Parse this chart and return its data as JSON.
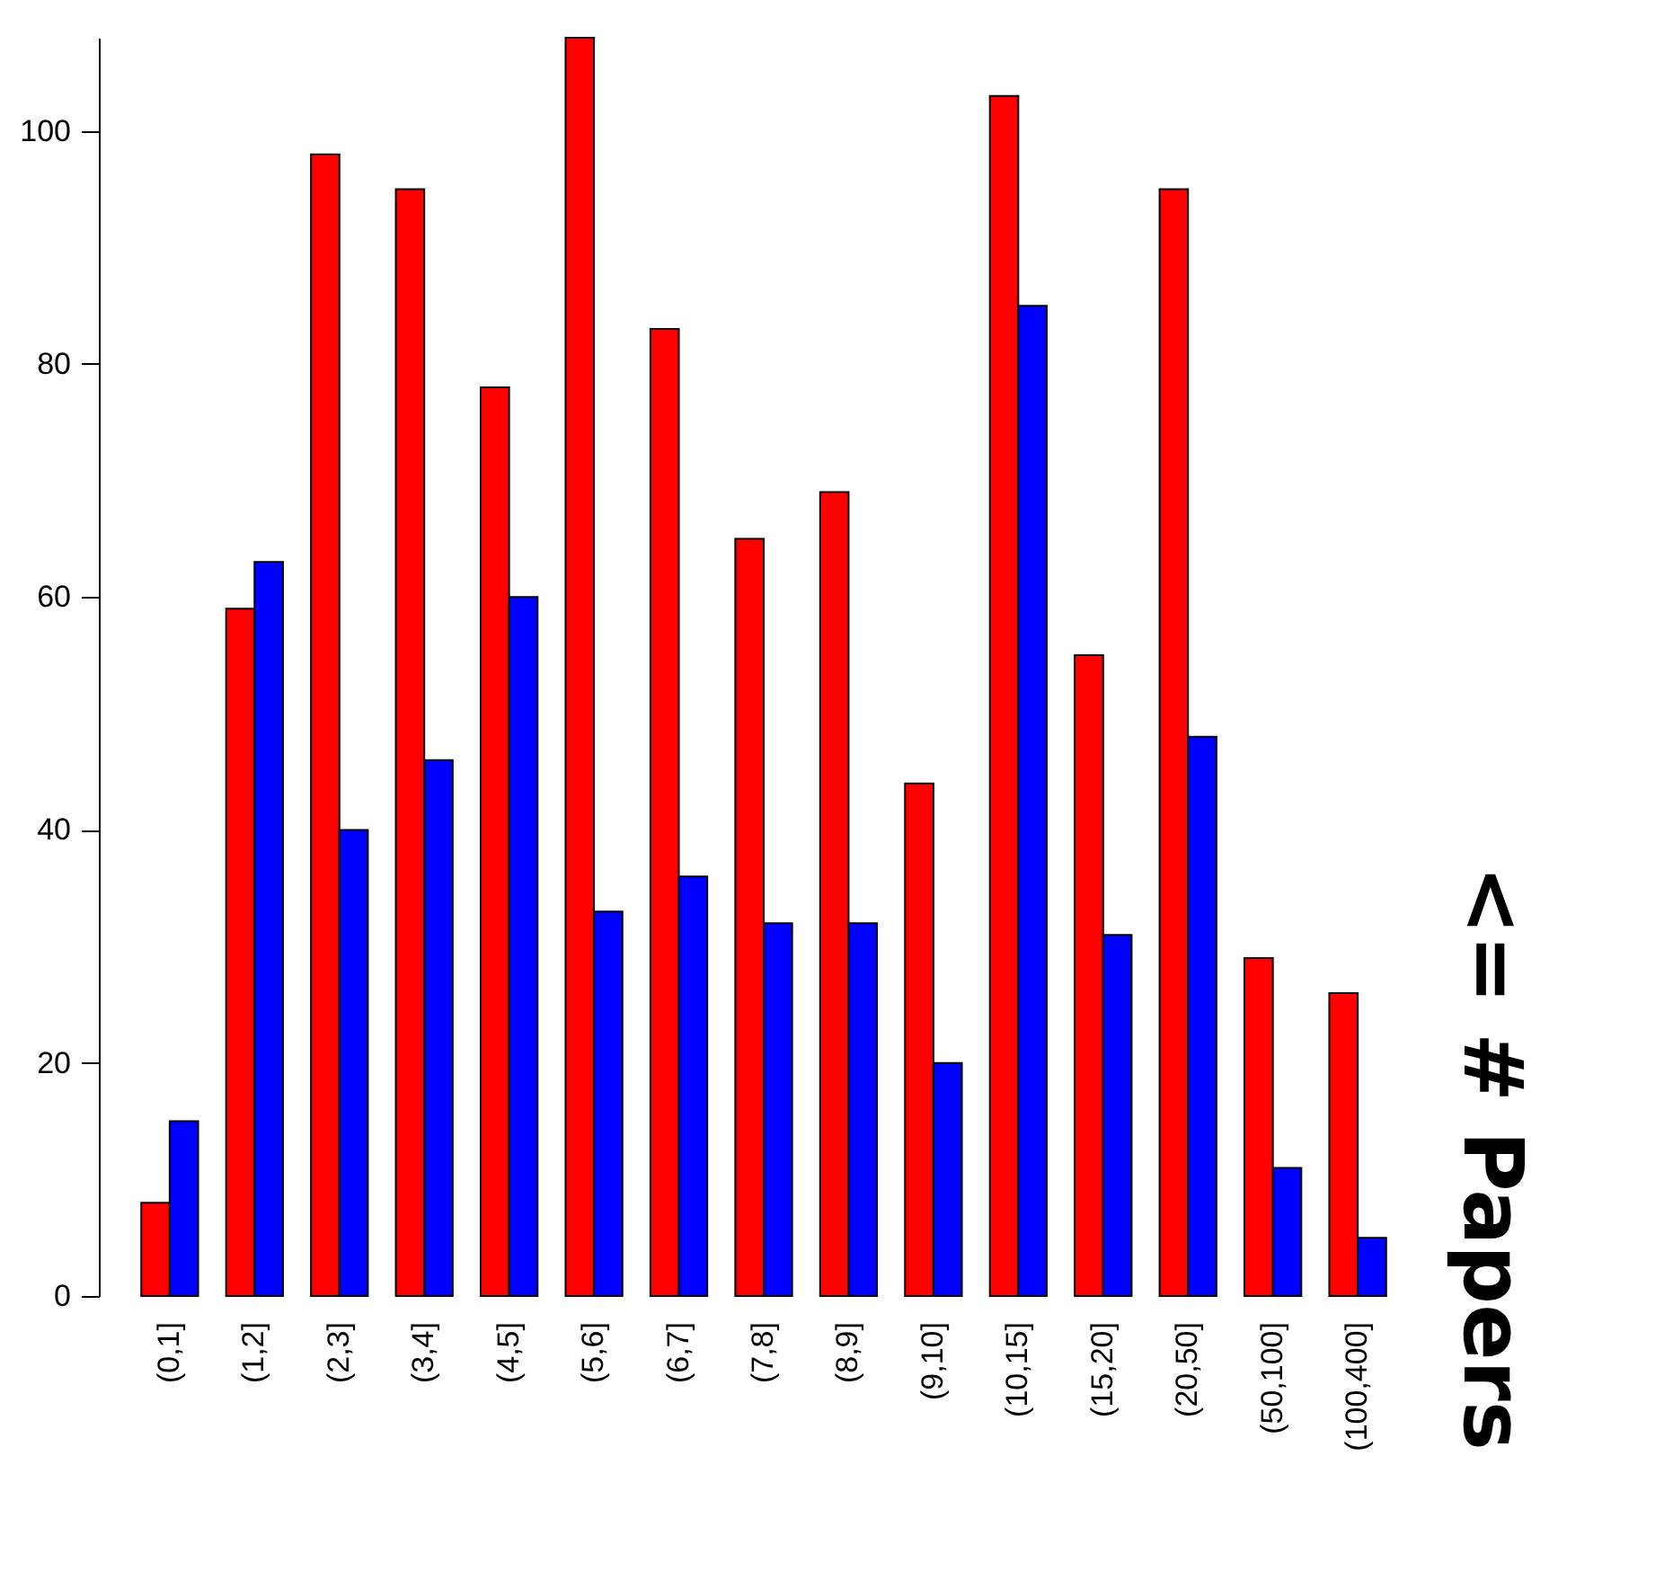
{
  "chart_data": {
    "type": "bar",
    "title": "<= # Papers",
    "categories": [
      "(0,1]",
      "(1,2]",
      "(2,3]",
      "(3,4]",
      "(4,5]",
      "(5,6]",
      "(6,7]",
      "(7,8]",
      "(8,9]",
      "(9,10]",
      "(10,15]",
      "(15,20]",
      "(20,50]",
      "(50,100]",
      "(100,400]"
    ],
    "series": [
      {
        "color": "#ff0000",
        "values": [
          8,
          59,
          98,
          95,
          78,
          108,
          83,
          65,
          69,
          44,
          103,
          55,
          95,
          29,
          26
        ]
      },
      {
        "color": "#0000ff",
        "values": [
          15,
          63,
          40,
          46,
          60,
          33,
          36,
          32,
          32,
          20,
          85,
          31,
          48,
          11,
          5
        ]
      }
    ],
    "ylim": [
      0,
      108
    ],
    "yticks": [
      0,
      20,
      40,
      60,
      80,
      100
    ],
    "grid": false,
    "legend": false
  }
}
